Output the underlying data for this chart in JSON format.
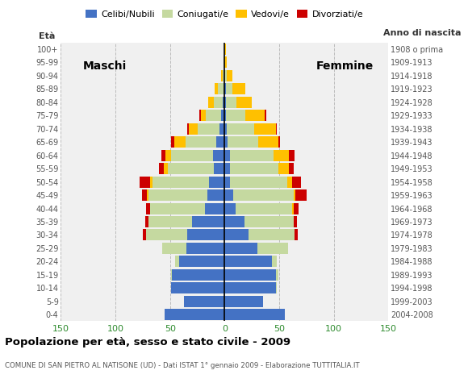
{
  "age_groups": [
    "0-4",
    "5-9",
    "10-14",
    "15-19",
    "20-24",
    "25-29",
    "30-34",
    "35-39",
    "40-44",
    "45-49",
    "50-54",
    "55-59",
    "60-64",
    "65-69",
    "70-74",
    "75-79",
    "80-84",
    "85-89",
    "90-94",
    "95-99",
    "100+"
  ],
  "birth_years": [
    "2004-2008",
    "1999-2003",
    "1994-1998",
    "1989-1993",
    "1984-1988",
    "1979-1983",
    "1974-1978",
    "1969-1973",
    "1964-1968",
    "1959-1963",
    "1954-1958",
    "1949-1953",
    "1944-1948",
    "1939-1943",
    "1934-1938",
    "1929-1933",
    "1924-1928",
    "1919-1923",
    "1914-1918",
    "1909-1913",
    "1908 o prima"
  ],
  "colors": {
    "celibe": "#4472c4",
    "coniugato": "#c5d9a0",
    "vedovo": "#ffc000",
    "divorziato": "#cc0000"
  },
  "males": {
    "celibe": [
      55,
      37,
      49,
      48,
      42,
      35,
      34,
      30,
      18,
      16,
      14,
      10,
      11,
      8,
      5,
      3,
      2,
      1,
      0,
      0,
      0
    ],
    "coniugato": [
      0,
      0,
      0,
      1,
      3,
      22,
      38,
      40,
      50,
      54,
      52,
      42,
      38,
      28,
      20,
      14,
      8,
      5,
      2,
      1,
      0
    ],
    "vedovo": [
      0,
      0,
      0,
      0,
      0,
      0,
      0,
      0,
      0,
      1,
      2,
      4,
      5,
      10,
      8,
      5,
      5,
      3,
      1,
      0,
      0
    ],
    "divorziato": [
      0,
      0,
      0,
      0,
      0,
      0,
      3,
      3,
      4,
      5,
      10,
      4,
      4,
      3,
      1,
      1,
      0,
      0,
      0,
      0,
      0
    ]
  },
  "females": {
    "celibe": [
      55,
      35,
      47,
      47,
      43,
      30,
      22,
      18,
      10,
      8,
      5,
      5,
      5,
      3,
      2,
      1,
      1,
      1,
      0,
      0,
      0
    ],
    "coniugato": [
      0,
      0,
      1,
      2,
      5,
      28,
      42,
      45,
      52,
      55,
      52,
      44,
      40,
      28,
      25,
      18,
      10,
      6,
      2,
      0,
      0
    ],
    "vedovo": [
      0,
      0,
      0,
      0,
      0,
      0,
      0,
      0,
      1,
      2,
      5,
      10,
      14,
      18,
      20,
      18,
      14,
      12,
      5,
      2,
      1
    ],
    "divorziato": [
      0,
      0,
      0,
      0,
      0,
      0,
      3,
      3,
      5,
      10,
      8,
      4,
      5,
      2,
      1,
      1,
      0,
      0,
      0,
      0,
      0
    ]
  },
  "title": "Popolazione per età, sesso e stato civile - 2009",
  "subtitle": "COMUNE DI SAN PIETRO AL NATISONE (UD) - Dati ISTAT 1° gennaio 2009 - Elaborazione TUTTITALIA.IT",
  "xlabel_left": "Maschi",
  "xlabel_right": "Femmine",
  "ylabel_left": "Età",
  "ylabel_right": "Anno di nascita",
  "xlim": 150,
  "bg_color": "#ffffff",
  "plot_bg": "#f0f0f0",
  "grid_color": "#bbbbbb"
}
